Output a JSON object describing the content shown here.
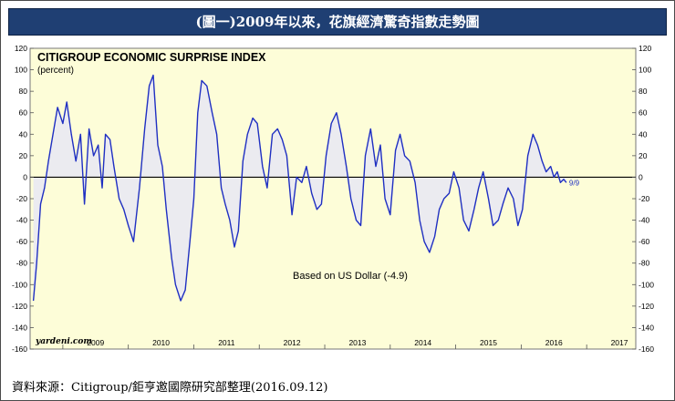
{
  "banner_title": "(圖一)2009年以來，花旗經濟驚奇指數走勢圖",
  "source_note": "資料來源：Citigroup/鉅亨邀國際研究部整理(2016.09.12)",
  "chart_data": {
    "type": "line",
    "title": "CITIGROUP ECONOMIC SURPRISE INDEX",
    "subtitle": "(percent)",
    "annotation": "Based on US Dollar (-4.9)",
    "end_label": "9/9",
    "watermark": "yardeni.com",
    "xlabel": "",
    "ylabel": "",
    "xlim": [
      2008.5,
      2017.75
    ],
    "ylim": [
      -160,
      120
    ],
    "yticks": [
      -160,
      -140,
      -120,
      -100,
      -80,
      -60,
      -40,
      -20,
      0,
      20,
      40,
      60,
      80,
      100,
      120
    ],
    "year_labels": [
      "2009",
      "2010",
      "2011",
      "2012",
      "2013",
      "2014",
      "2015",
      "2016",
      "2017"
    ],
    "colors": {
      "plot_bg": "#fdfdd8",
      "line": "#1f2fc2",
      "fill": "#ebebf0",
      "zero": "#000000",
      "banner": "#1f3f73"
    },
    "series": [
      {
        "x": [
          2008.55,
          2008.6,
          2008.66,
          2008.72,
          2008.78,
          2008.85,
          2008.92,
          2009.0,
          2009.06,
          2009.13,
          2009.2,
          2009.27,
          2009.33,
          2009.4,
          2009.47,
          2009.54,
          2009.6,
          2009.65,
          2009.72,
          2009.78,
          2009.86,
          2009.93,
          2010.0,
          2010.08,
          2010.17,
          2010.25,
          2010.32,
          2010.38,
          2010.45,
          2010.52,
          2010.58,
          2010.66,
          2010.72,
          2010.8,
          2010.87,
          2010.94,
          2011.0,
          2011.06,
          2011.12,
          2011.2,
          2011.28,
          2011.35,
          2011.42,
          2011.48,
          2011.55,
          2011.62,
          2011.68,
          2011.75,
          2011.82,
          2011.9,
          2011.97,
          2012.05,
          2012.12,
          2012.2,
          2012.28,
          2012.35,
          2012.42,
          2012.5,
          2012.57,
          2012.65,
          2012.72,
          2012.8,
          2012.88,
          2012.95,
          2013.02,
          2013.1,
          2013.18,
          2013.25,
          2013.33,
          2013.4,
          2013.48,
          2013.55,
          2013.62,
          2013.7,
          2013.78,
          2013.85,
          2013.92,
          2014.0,
          2014.08,
          2014.15,
          2014.22,
          2014.3,
          2014.38,
          2014.45,
          2014.52,
          2014.6,
          2014.68,
          2014.75,
          2014.82,
          2014.9,
          2014.97,
          2015.05,
          2015.12,
          2015.2,
          2015.28,
          2015.35,
          2015.42,
          2015.5,
          2015.57,
          2015.65,
          2015.72,
          2015.8,
          2015.88,
          2015.95,
          2016.02,
          2016.1,
          2016.18,
          2016.25,
          2016.32,
          2016.38,
          2016.45,
          2016.5,
          2016.55,
          2016.6,
          2016.65,
          2016.69
        ],
        "y": [
          -115,
          -80,
          -25,
          -10,
          15,
          40,
          65,
          50,
          70,
          40,
          15,
          40,
          -25,
          45,
          20,
          30,
          -10,
          40,
          35,
          10,
          -20,
          -30,
          -45,
          -60,
          -10,
          45,
          85,
          95,
          30,
          10,
          -30,
          -75,
          -100,
          -115,
          -105,
          -60,
          -20,
          60,
          90,
          85,
          60,
          40,
          -10,
          -25,
          -40,
          -65,
          -50,
          15,
          40,
          55,
          50,
          10,
          -10,
          40,
          45,
          35,
          20,
          -35,
          0,
          -5,
          10,
          -15,
          -30,
          -25,
          20,
          50,
          60,
          40,
          10,
          -20,
          -40,
          -45,
          20,
          45,
          10,
          30,
          -20,
          -35,
          25,
          40,
          20,
          15,
          -5,
          -40,
          -60,
          -70,
          -55,
          -30,
          -20,
          -15,
          5,
          -10,
          -40,
          -50,
          -30,
          -10,
          5,
          -20,
          -45,
          -40,
          -25,
          -10,
          -20,
          -45,
          -30,
          20,
          40,
          30,
          15,
          5,
          10,
          0,
          5,
          -5,
          -2,
          -5
        ]
      }
    ]
  }
}
